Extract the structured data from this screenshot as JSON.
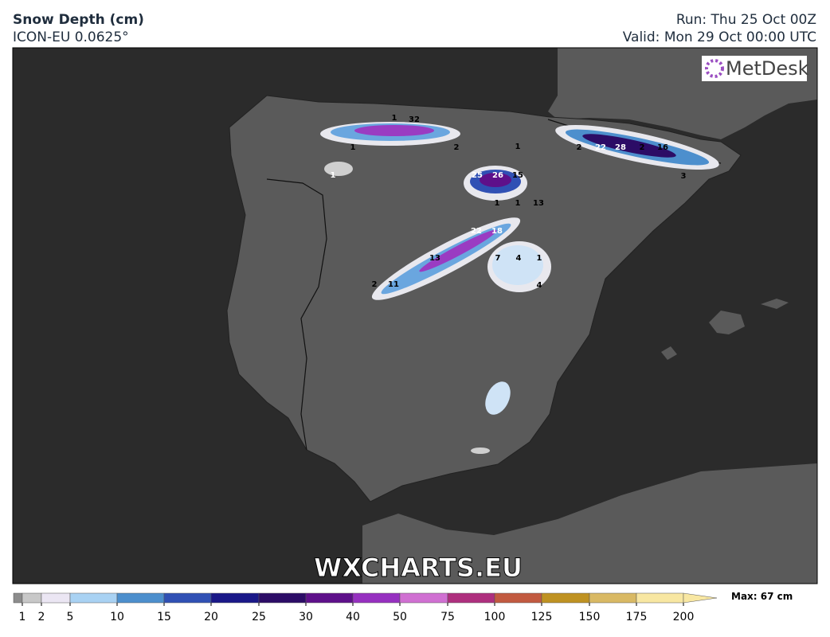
{
  "header": {
    "title": "Snow Depth (cm)",
    "model": "ICON-EU 0.0625°",
    "run": "Run: Thu 25 Oct 00Z",
    "valid": "Valid: Mon 29 Oct 00:00 UTC"
  },
  "logo": "MetDesk",
  "watermark": "WXCHARTS.EU",
  "map_labels": [
    1,
    32,
    1,
    2,
    1,
    1,
    2,
    22,
    28,
    2,
    16,
    3,
    25,
    26,
    15,
    1,
    1,
    13,
    22,
    18,
    7,
    4,
    1,
    13,
    2,
    11,
    4
  ],
  "legend": {
    "ticks": [
      1,
      2,
      5,
      10,
      15,
      20,
      25,
      30,
      40,
      50,
      75,
      100,
      125,
      150,
      175,
      200
    ],
    "colors": [
      "#8c8c8c",
      "#c8c8c8",
      "#ebe6f3",
      "#a9d2f3",
      "#4d8fcd",
      "#3050b4",
      "#1a1888",
      "#2c0c66",
      "#5e108a",
      "#9630c0",
      "#d070d2",
      "#ae2f7e",
      "#c25a40",
      "#bf9222",
      "#d9b964",
      "#f8e7a2"
    ],
    "max": "Max: 67 cm"
  }
}
